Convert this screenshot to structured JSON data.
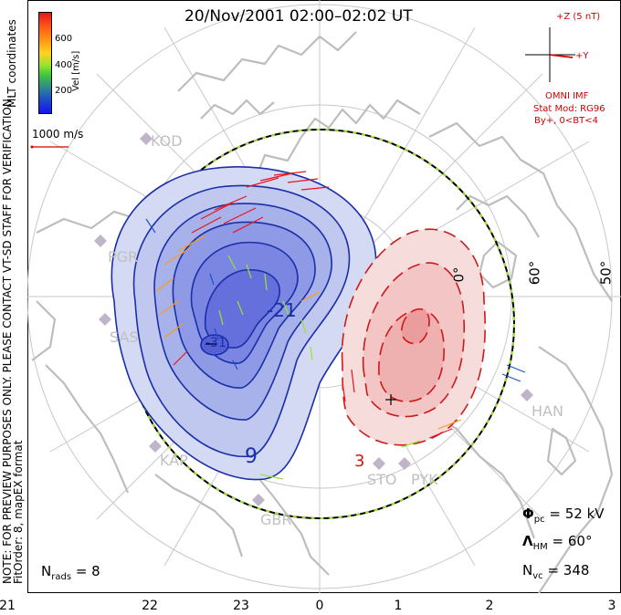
{
  "title": "20/Nov/2001 02:00–02:02 UT",
  "side_note_line1": "NOTE: FOR PREVIEW PURPOSES ONLY. PLEASE CONTACT VT-SD STAFF FOR VERIFICATION.",
  "side_note_line2": "FitOrder: 8, mapEX format",
  "mlt_coords_label": "MLT coordinates",
  "colorbar": {
    "label": "Vel [m/s]",
    "ticks": [
      "600",
      "400",
      "200"
    ],
    "colors": [
      "#e8141e",
      "#ff5a14",
      "#ff9a14",
      "#ffd21e",
      "#9be32d",
      "#3cc83c",
      "#2e8b8b",
      "#1e50c8",
      "#1414f0"
    ]
  },
  "scale_vector_label": "1000 m/s",
  "imf": {
    "z_label": "+Z (5 nT)",
    "y_label": "+Y",
    "source": "OMNI IMF",
    "stat_mod": "Stat Mod: RG96",
    "condition": "By+, 0<BT<4"
  },
  "latitude_labels": [
    "60°",
    "50°",
    "0°"
  ],
  "radar_sites": [
    {
      "code": "KOD"
    },
    {
      "code": "PGR"
    },
    {
      "code": "SAS"
    },
    {
      "code": "KAP"
    },
    {
      "code": "GBR"
    },
    {
      "code": "STO"
    },
    {
      "code": "PYK"
    },
    {
      "code": "HAN"
    }
  ],
  "contour_labels": [
    "-21",
    "9",
    "-31",
    "3"
  ],
  "stats": {
    "phi_pc_symbol": "Φ",
    "phi_pc_sub": "pc",
    "phi_pc_value": "= 52 kV",
    "lambda_symbol": "Λ",
    "lambda_sub": "HM",
    "lambda_value": "= 60°",
    "nvc_symbol": "N",
    "nvc_sub": "vc",
    "nvc_value": "= 348",
    "nrads_symbol": "N",
    "nrads_sub": "rads",
    "nrads_value": "= 8"
  },
  "mlt_axis": [
    "21",
    "22",
    "23",
    "0",
    "1",
    "2",
    "3"
  ],
  "colors": {
    "negative_cell": "#1a2fa8",
    "positive_cell": "#cc1a1a",
    "boundary": "#9be32d",
    "coast": "#bdbdbd",
    "grid": "#c8c8c8"
  }
}
